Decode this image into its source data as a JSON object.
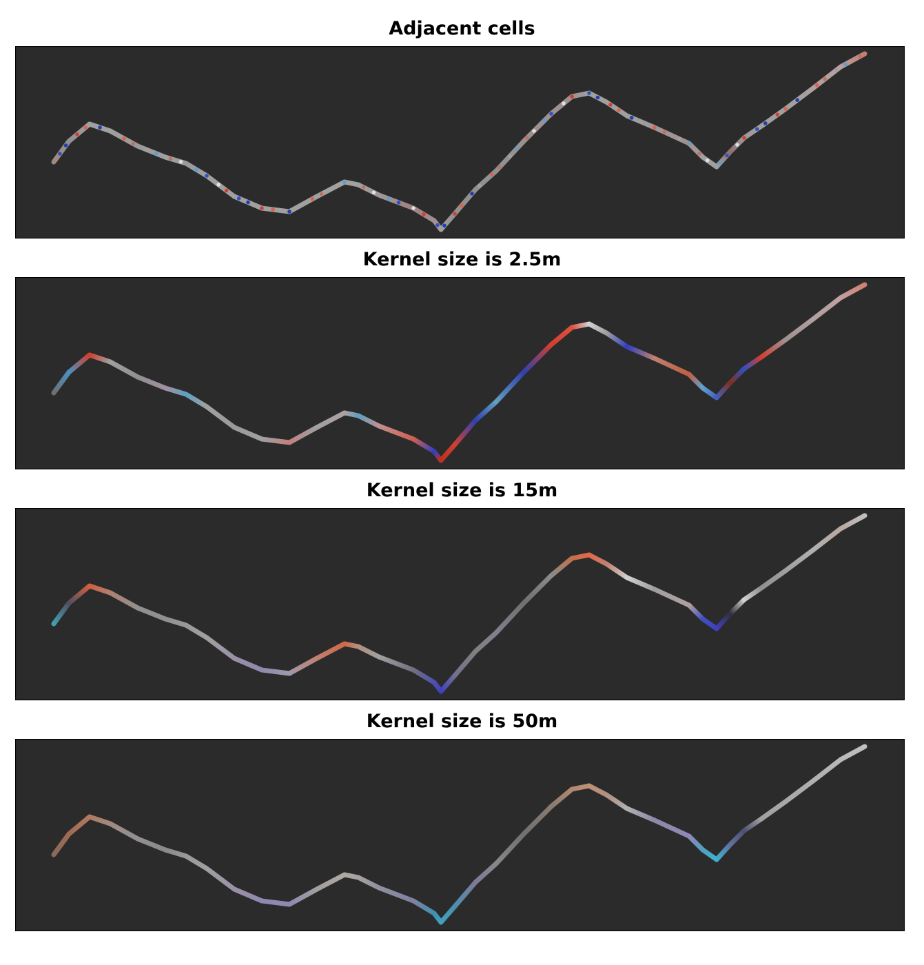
{
  "chart_data": [
    {
      "type": "line",
      "title": "Adjacent cells",
      "background": "#2b2b2b",
      "speckle": [
        "#d04030",
        "#3050c8",
        "#e0e0e0",
        "#5aa0d0",
        "#c07060",
        "#a0a0a0",
        "#e06050",
        "#2040b0"
      ],
      "colors": [
        "#a08a80",
        "#909090",
        "#a0a0a0",
        "#a0a0a0",
        "#9a9a9a",
        "#a0a0a0",
        "#9a9a9a",
        "#a0a0a0",
        "#a0a0a0",
        "#a0a0a0",
        "#a0a0a0",
        "#a0a0a0",
        "#a8a0a0",
        "#a0a0a0",
        "#a09898",
        "#a08080",
        "#a09090",
        "#a0a0a0",
        "#909090",
        "#909090",
        "#909090",
        "#9a9090",
        "#a09090",
        "#a09090",
        "#a0a0a0",
        "#a0a0a0",
        "#a0a0a0",
        "#a09898",
        "#a09090",
        "#a0a0a0",
        "#a0a0a0",
        "#907070",
        "#a09898",
        "#a0a0a0",
        "#a0a0a0",
        "#b0a0a0",
        "#b8a0a0",
        "#c08070"
      ]
    },
    {
      "type": "line",
      "title": "Kernel size is 2.5m",
      "background": "#2b2b2b",
      "colors": [
        "#707070",
        "#4a90c0",
        "#d04030",
        "#a0a0a0",
        "#909090",
        "#a090a0",
        "#60a0c0",
        "#a0a0a0",
        "#9a9a9a",
        "#a0a0a0",
        "#c08080",
        "#a0a0a0",
        "#b0a0a0",
        "#60a0c0",
        "#c09090",
        "#d06050",
        "#3040c0",
        "#c03020",
        "#d04030",
        "#3040b0",
        "#60a0c0",
        "#3040b0",
        "#d04030",
        "#e05040",
        "#d0d0d0",
        "#a0a0a0",
        "#3040c0",
        "#c08070",
        "#c06040",
        "#60a0d0",
        "#4060c0",
        "#803020",
        "#3050c0",
        "#d04030",
        "#a09090",
        "#b0a0a0",
        "#c0a0a0",
        "#d08070"
      ]
    },
    {
      "type": "line",
      "title": "Kernel size is 15m",
      "background": "#2b2b2b",
      "colors": [
        "#40a0b0",
        "#505060",
        "#d06040",
        "#b08070",
        "#909090",
        "#909090",
        "#999999",
        "#a0a0a0",
        "#9a90a8",
        "#9088b0",
        "#a098a8",
        "#c08070",
        "#d06848",
        "#b09080",
        "#a0a0a0",
        "#707080",
        "#5050b0",
        "#4040c0",
        "#707090",
        "#808080",
        "#808090",
        "#707070",
        "#8a8a8a",
        "#c07050",
        "#e06848",
        "#c08070",
        "#d0d0d0",
        "#a0a0a0",
        "#b0a0a0",
        "#4050c0",
        "#4040c0",
        "#303040",
        "#d0d0d0",
        "#909090",
        "#a0a0a0",
        "#b0b0b0",
        "#b8a8a0",
        "#c0c0c0"
      ]
    },
    {
      "type": "line",
      "title": "Kernel size is 50m",
      "background": "#2b2b2b",
      "colors": [
        "#8a6a5a",
        "#a06a50",
        "#b07a60",
        "#a08a80",
        "#909090",
        "#8a8a8a",
        "#999999",
        "#a0a0a0",
        "#9a90a8",
        "#9088b0",
        "#9088b0",
        "#a0a0a0",
        "#b0a8a0",
        "#a8a0a0",
        "#9090a0",
        "#8080a0",
        "#4090b0",
        "#40a0c0",
        "#4a90b0",
        "#807898",
        "#888888",
        "#707070",
        "#8a7a70",
        "#b08870",
        "#c09078",
        "#b09080",
        "#b0b0b0",
        "#9088a8",
        "#9088b8",
        "#50a0c0",
        "#40b0d0",
        "#6070a0",
        "#505070",
        "#a0a0a0",
        "#a8a8a8",
        "#b0b0b0",
        "#b8b8b8",
        "#c0c0c0"
      ]
    }
  ],
  "path": {
    "xlim": [
      0,
      129.1
    ],
    "ylim": [
      0,
      27.9
    ],
    "x": [
      5.6,
      7.8,
      10.8,
      13.8,
      17.8,
      21.8,
      24.8,
      27.8,
      31.8,
      35.8,
      39.8,
      43.8,
      47.8,
      49.8,
      52.8,
      57.8,
      60.8,
      61.8,
      63.8,
      66.8,
      69.8,
      73.8,
      77.8,
      80.8,
      83.3,
      85.8,
      88.8,
      92.8,
      97.8,
      99.8,
      101.8,
      103.8,
      105.8,
      108.3,
      111.8,
      115.8,
      119.8,
      123.3
    ],
    "y": [
      11.1,
      14.1,
      16.6,
      15.6,
      13.4,
      11.8,
      10.9,
      9.1,
      6.1,
      4.4,
      3.9,
      6.1,
      8.2,
      7.8,
      6.3,
      4.4,
      2.6,
      1.3,
      3.6,
      7.1,
      9.8,
      14.1,
      18.1,
      20.6,
      21.1,
      19.8,
      17.8,
      16.1,
      13.8,
      11.8,
      10.4,
      12.6,
      14.6,
      16.3,
      18.8,
      21.8,
      24.9,
      26.8
    ]
  }
}
